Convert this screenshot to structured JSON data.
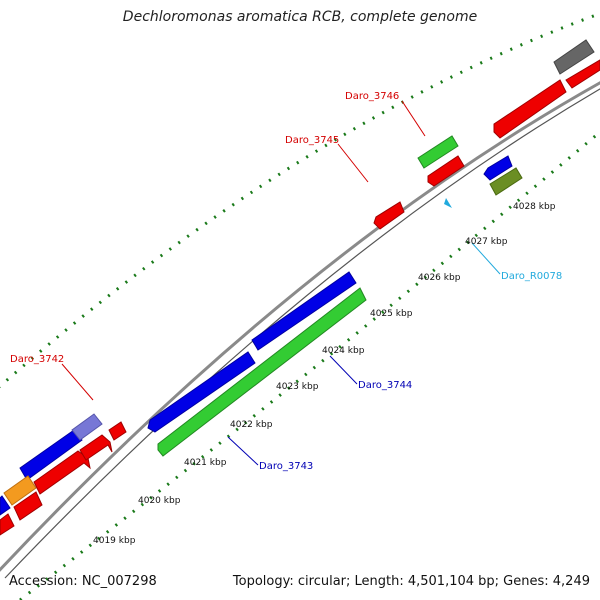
{
  "title": "Dechloromonas aromatica RCB, complete genome",
  "footer": {
    "accession": "Accession: NC_007298",
    "summary": "Topology: circular; Length: 4,501,104 bp; Genes: 4,249"
  },
  "ticks": [
    "4019 kbp",
    "4020 kbp",
    "4021 kbp",
    "4022 kbp",
    "4023 kbp",
    "4024 kbp",
    "4025 kbp",
    "4026 kbp",
    "4027 kbp",
    "4028 kbp"
  ],
  "labels": [
    {
      "text": "Daro_3742",
      "color": "#d40000"
    },
    {
      "text": "Daro_3743",
      "color": "#0000b4"
    },
    {
      "text": "Daro_3744",
      "color": "#0000b4"
    },
    {
      "text": "Daro_3745",
      "color": "#d40000"
    },
    {
      "text": "Daro_3746",
      "color": "#d40000"
    },
    {
      "text": "Daro_R0078",
      "color": "#22aadd"
    }
  ],
  "colors": {
    "red": "#ee0000",
    "blue": "#0000e6",
    "green": "#33cc33",
    "orange": "#f39a1f",
    "purple": "#7777d6",
    "olive": "#6b8e23",
    "gray": "#666666",
    "backbone": "#888888",
    "dots": "#1a7a1a"
  }
}
